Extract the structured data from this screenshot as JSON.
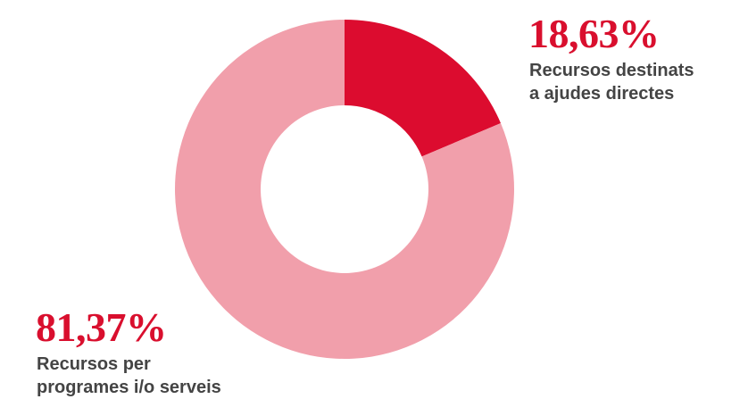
{
  "chart_data": {
    "type": "pie",
    "donut": true,
    "values": [
      18.63,
      81.37
    ],
    "colors": [
      "#dc0c2f",
      "#f19fab"
    ],
    "slices": [
      {
        "value_label": "18,63%",
        "label_lines": [
          "Recursos destinats",
          "a ajudes directes"
        ]
      },
      {
        "value_label": "81,37%",
        "label_lines": [
          "Recursos per",
          "programes i/o serveis"
        ]
      }
    ]
  }
}
